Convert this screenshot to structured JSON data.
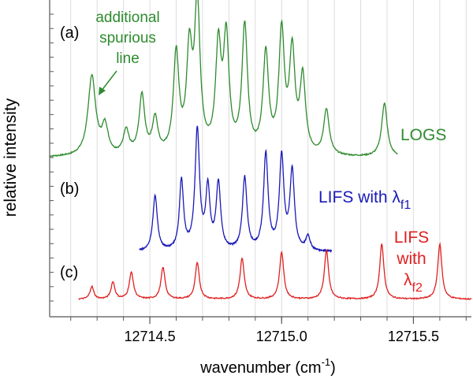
{
  "chart_data": {
    "type": "line",
    "xlabel_main": "wavenumber (cm",
    "xlabel_sup": "-1",
    "xlabel_end": ")",
    "ylabel": "relative intensity",
    "xlim": [
      12714.12,
      12715.72
    ],
    "xticks": [
      {
        "value": 12714.5,
        "label": "12714.5"
      },
      {
        "value": 12715.0,
        "label": "12715.0"
      },
      {
        "value": 12715.5,
        "label": "12715.5"
      }
    ],
    "grid": true,
    "colors": {
      "logs": "#2e8b2e",
      "lifs1": "#1a1ab8",
      "lifs2": "#e02020",
      "axis": "#555555",
      "grid": "#dcdcdc"
    },
    "annotations": {
      "panel_a": "(a)",
      "panel_b": "(b)",
      "panel_c": "(c)",
      "spurious_1": "additional",
      "spurious_2": "spurious",
      "spurious_3": "line"
    },
    "series": [
      {
        "name": "LOGS",
        "label": "LOGS",
        "x_range": [
          12714.12,
          12715.44
        ],
        "baseline": 0.0,
        "peaks": [
          [
            12714.28,
            0.46,
            0.022
          ],
          [
            12714.33,
            0.16,
            0.018
          ],
          [
            12714.41,
            0.14,
            0.016
          ],
          [
            12714.47,
            0.34,
            0.016
          ],
          [
            12714.52,
            0.2,
            0.016
          ],
          [
            12714.6,
            0.57,
            0.016
          ],
          [
            12714.65,
            0.56,
            0.016
          ],
          [
            12714.68,
            0.84,
            0.016
          ],
          [
            12714.76,
            0.59,
            0.016
          ],
          [
            12714.79,
            0.64,
            0.016
          ],
          [
            12714.86,
            0.73,
            0.016
          ],
          [
            12714.94,
            0.57,
            0.016
          ],
          [
            12715.0,
            0.69,
            0.016
          ],
          [
            12715.04,
            0.57,
            0.016
          ],
          [
            12715.08,
            0.43,
            0.016
          ],
          [
            12715.17,
            0.26,
            0.016
          ],
          [
            12715.39,
            0.31,
            0.016
          ]
        ]
      },
      {
        "name": "LIFS with λf1",
        "label_main": "LIFS with λ",
        "label_sub": "f1",
        "x_range": [
          12714.46,
          12715.19
        ],
        "baseline": 0.0,
        "peaks": [
          [
            12714.52,
            0.35,
            0.013
          ],
          [
            12714.62,
            0.44,
            0.012
          ],
          [
            12714.68,
            0.76,
            0.013
          ],
          [
            12714.72,
            0.38,
            0.012
          ],
          [
            12714.76,
            0.42,
            0.013
          ],
          [
            12714.86,
            0.46,
            0.013
          ],
          [
            12714.94,
            0.61,
            0.013
          ],
          [
            12715.0,
            0.59,
            0.013
          ],
          [
            12715.04,
            0.5,
            0.013
          ],
          [
            12715.1,
            0.09,
            0.012
          ]
        ]
      },
      {
        "name": "LIFS with λf2",
        "label_1": "LIFS",
        "label_2": "with",
        "label_main": "λ",
        "label_sub": "f2",
        "x_range": [
          12714.23,
          12715.72
        ],
        "baseline": 0.0,
        "peaks": [
          [
            12714.28,
            0.08,
            0.011
          ],
          [
            12714.36,
            0.11,
            0.011
          ],
          [
            12714.43,
            0.17,
            0.012
          ],
          [
            12714.55,
            0.2,
            0.012
          ],
          [
            12714.68,
            0.23,
            0.012
          ],
          [
            12714.85,
            0.26,
            0.012
          ],
          [
            12715.0,
            0.3,
            0.012
          ],
          [
            12715.17,
            0.31,
            0.012
          ],
          [
            12715.38,
            0.35,
            0.012
          ],
          [
            12715.6,
            0.35,
            0.012
          ]
        ]
      }
    ]
  }
}
